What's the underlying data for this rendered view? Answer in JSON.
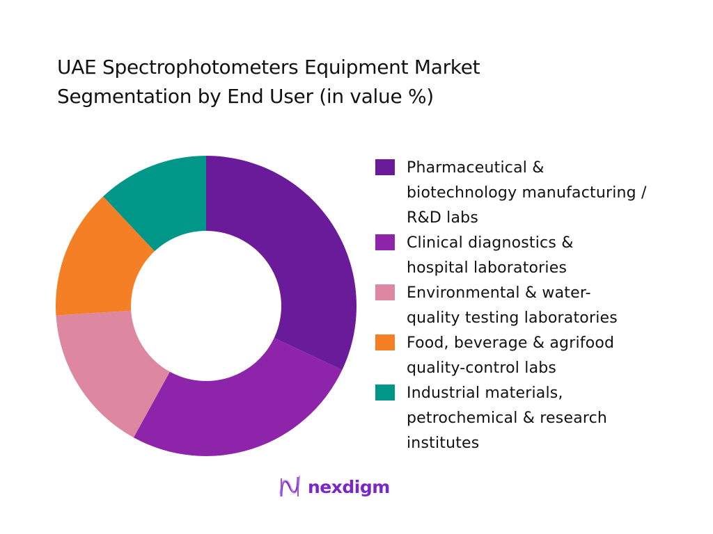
{
  "title": {
    "line1": "UAE Spectrophotometers Equipment Market",
    "line2": "Segmentation by End User (in value %)"
  },
  "chart_data": {
    "type": "pie",
    "subtype": "donut",
    "title": "UAE Spectrophotometers Equipment Market Segmentation by End User (in value %)",
    "categories": [
      "Pharmaceutical & biotechnology manufacturing / R&D labs",
      "Clinical diagnostics & hospital laboratories",
      "Environmental & water-quality testing laboratories",
      "Food, beverage & agrifood quality-control labs",
      "Industrial materials, petrochemical & research institutes"
    ],
    "values": [
      32,
      26,
      16,
      14,
      12
    ],
    "colors": [
      "#6a1b9a",
      "#8e24aa",
      "#de87a0",
      "#f47f24",
      "#009688"
    ],
    "legend_position": "right",
    "data_labels": false
  },
  "legend": [
    {
      "lines": [
        "Pharmaceutical &",
        "biotechnology manufacturing /",
        "R&D labs"
      ],
      "color": "#6a1b9a"
    },
    {
      "lines": [
        "Clinical diagnostics &",
        "hospital laboratories"
      ],
      "color": "#8e24aa"
    },
    {
      "lines": [
        "Environmental & water-",
        "quality testing laboratories"
      ],
      "color": "#de87a0"
    },
    {
      "lines": [
        "Food, beverage & agrifood",
        "quality-control labs"
      ],
      "color": "#f47f24"
    },
    {
      "lines": [
        "Industrial materials,",
        "petrochemical & research",
        "institutes"
      ],
      "color": "#009688"
    }
  ],
  "logo": {
    "text": "nexdigm",
    "icon": "nexdigm-wave-icon"
  }
}
